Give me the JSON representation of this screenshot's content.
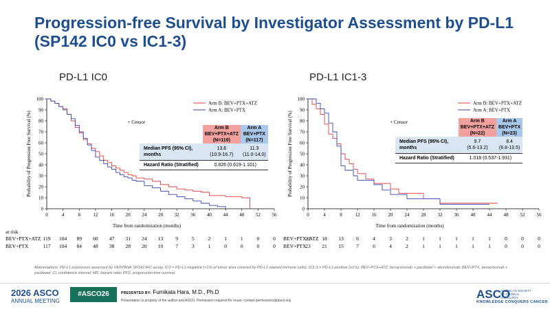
{
  "slide": {
    "title": "Progression-free Survival by Investigator Assessment by PD-L1 (SP142 IC0 vs IC1-3)",
    "footnote": "Abbreviations: PD-L1 expression assessed by VENTANA SP142 IHC assay. IC0 = PD-L1-negative (<1% of tumor area covered by PD-L1-stained immune cells); IC1-3 = PD-L1-positive (≥1%). BEV+PTX+ATZ, bevacizumab + paclitaxel + atezolizumab; BEV+PTX, bevacizumab + paclitaxel; CI, confidence interval; HR, hazard ratio; PFS, progression-free survival",
    "risk_label": "at risk"
  },
  "footer": {
    "meeting_year": "2026",
    "meeting_name": "ASCO",
    "meeting_sub": "ANNUAL MEETING",
    "hashtag": "#ASCO26",
    "presented_by": "PRESENTED BY:",
    "presenter": "Fumikata Hara, M.D., Ph.D",
    "disclaimer": "Presentation is property of the author and ASCO. Permission required for reuse; contact permissions@asco.org",
    "asco_right": "ASCO",
    "asco_right_sub": "AMERICAN SOCIETY OF CLINICAL ONCOLOGY",
    "asco_tagline": "KNOWLEDGE CONQUERS CANCER"
  },
  "colors": {
    "title": "#1d4e8f",
    "arm_b": "#e23b3b",
    "arm_a": "#3346b8",
    "arm_b_header": "#f3a19f",
    "arm_a_header": "#a9c8ea",
    "hashtag_bg": "#17705a"
  },
  "chart_data": [
    {
      "type": "line",
      "panel_title": "PD-L1 IC0",
      "xlabel": "Time from randomization (months)",
      "ylabel": "Probability of Progression Free Survival (%)",
      "xlim": [
        0,
        56
      ],
      "ylim": [
        0,
        100
      ],
      "x_ticks": [
        0,
        4,
        8,
        12,
        16,
        20,
        24,
        28,
        32,
        36,
        40,
        44,
        48,
        52,
        56
      ],
      "y_ticks": [
        0,
        10,
        20,
        30,
        40,
        50,
        60,
        70,
        80,
        90,
        100
      ],
      "legend": [
        "Arm B: BEV+PTX+ATZ",
        "Arm A: BEV+PTX"
      ],
      "censor_label": "+ Censor",
      "series": [
        {
          "name": "Arm B: BEV+PTX+ATZ",
          "x": [
            0,
            1,
            2,
            3,
            4,
            5,
            6,
            7,
            8,
            9,
            10,
            11,
            12,
            13,
            14,
            15,
            16,
            17,
            18,
            19,
            20,
            21,
            22,
            24,
            26,
            28,
            30,
            32,
            34,
            36,
            38,
            40,
            44,
            48,
            50
          ],
          "y": [
            100,
            98,
            96,
            93,
            91,
            86,
            80,
            74,
            69,
            63,
            59,
            55,
            52,
            48,
            44,
            42,
            39,
            37,
            35,
            33,
            31,
            30,
            28,
            27,
            25,
            22,
            20,
            18,
            17,
            16,
            15,
            12,
            11,
            10,
            0
          ]
        },
        {
          "name": "Arm A: BEV+PTX",
          "x": [
            0,
            1,
            2,
            3,
            4,
            5,
            6,
            7,
            8,
            9,
            10,
            11,
            12,
            13,
            14,
            15,
            16,
            17,
            18,
            19,
            20,
            21,
            22,
            24,
            26,
            28,
            30,
            32,
            34,
            36,
            38,
            40,
            42,
            44
          ],
          "y": [
            100,
            98,
            96,
            93,
            90,
            86,
            82,
            76,
            70,
            64,
            58,
            53,
            47,
            44,
            41,
            38,
            36,
            33,
            31,
            29,
            28,
            26,
            25,
            21,
            19,
            16,
            13,
            11,
            9,
            7,
            5,
            3,
            2,
            0
          ]
        }
      ],
      "table": {
        "arm_b_header": [
          "Arm B",
          "BEV+PTX+ATZ",
          "(N=119)"
        ],
        "arm_a_header": [
          "Arm A",
          "BEV+PTX",
          "(N=117)"
        ],
        "median_label": [
          "Median PFS (95% CI),",
          "months"
        ],
        "median_b": [
          "13.6",
          "(10.9-16.7)"
        ],
        "median_a": [
          "11.3",
          "(11.0-14.0)"
        ],
        "hr_label": "Hazard Ratio (Stratified)",
        "hr_value": "0.826 (0.619-1.101)"
      },
      "at_risk": [
        {
          "label": "BEV+PTX+ATZ",
          "values": [
            "119",
            "104",
            "89",
            "60",
            "47",
            "31",
            "24",
            "13",
            "9",
            "5",
            "2",
            "1",
            "1",
            "0",
            "0"
          ]
        },
        {
          "label": "BEV+PTX",
          "values": [
            "117",
            "104",
            "84",
            "48",
            "38",
            "28",
            "20",
            "10",
            "7",
            "3",
            "1",
            "0",
            "0",
            "0",
            "0"
          ]
        }
      ]
    },
    {
      "type": "line",
      "panel_title": "PD-L1 IC1-3",
      "xlabel": "Time from randomization (months)",
      "ylabel": "Probability of Progression Free Survival (%)",
      "xlim": [
        0,
        56
      ],
      "ylim": [
        0,
        100
      ],
      "x_ticks": [
        0,
        4,
        8,
        12,
        16,
        20,
        24,
        28,
        32,
        36,
        40,
        44,
        48,
        52,
        56
      ],
      "y_ticks": [
        0,
        10,
        20,
        30,
        40,
        50,
        60,
        70,
        80,
        90,
        100
      ],
      "legend": [
        "Arm B: BEV+PTX+ATZ",
        "Arm A: BEV+PTX"
      ],
      "censor_label": "+ Censor",
      "series": [
        {
          "name": "Arm B: BEV+PTX+ATZ",
          "x": [
            0,
            1,
            2,
            3,
            4,
            5,
            6,
            7,
            8,
            9,
            10,
            11,
            12,
            14,
            16,
            18,
            20,
            22,
            24,
            28,
            32,
            36,
            40,
            44,
            46
          ],
          "y": [
            100,
            95,
            91,
            86,
            77,
            68,
            64,
            59,
            50,
            45,
            41,
            36,
            32,
            27,
            23,
            23,
            18,
            14,
            14,
            9,
            5,
            5,
            5,
            5,
            5
          ]
        },
        {
          "name": "Arm A: BEV+PTX",
          "x": [
            0,
            1,
            2,
            3,
            4,
            5,
            6,
            7,
            8,
            9,
            10,
            11,
            12,
            14,
            16,
            18,
            20,
            22,
            24,
            28,
            32,
            36,
            40,
            44
          ],
          "y": [
            100,
            100,
            96,
            91,
            87,
            78,
            70,
            57,
            39,
            35,
            35,
            30,
            26,
            26,
            22,
            17,
            13,
            13,
            9,
            9,
            4,
            4,
            4,
            4
          ]
        }
      ],
      "table": {
        "arm_b_header": [
          "Arm B",
          "BEV+PTX+ATZ",
          "(N=22)"
        ],
        "arm_a_header": [
          "Arm A",
          "BEV+PTX",
          "(N=23)"
        ],
        "median_label": [
          "Median PFS (95% CI),",
          "months"
        ],
        "median_b": [
          "9.7",
          "(5.6-13.2)"
        ],
        "median_a": [
          "8.4",
          "(6.8-13.5)"
        ],
        "hr_label": "Hazard Ratio (Stratified)",
        "hr_value": "1.018 (0.537-1.931)"
      },
      "at_risk": [
        {
          "label": "BEV+PTX+ATZ",
          "values": [
            "22",
            "18",
            "13",
            "6",
            "4",
            "3",
            "2",
            "1",
            "1",
            "1",
            "1",
            "1",
            "0",
            "0",
            "0"
          ]
        },
        {
          "label": "BEV+PTX",
          "values": [
            "23",
            "21",
            "15",
            "7",
            "6",
            "4",
            "2",
            "1",
            "1",
            "1",
            "1",
            "1",
            "0",
            "0",
            "0"
          ]
        }
      ]
    }
  ]
}
